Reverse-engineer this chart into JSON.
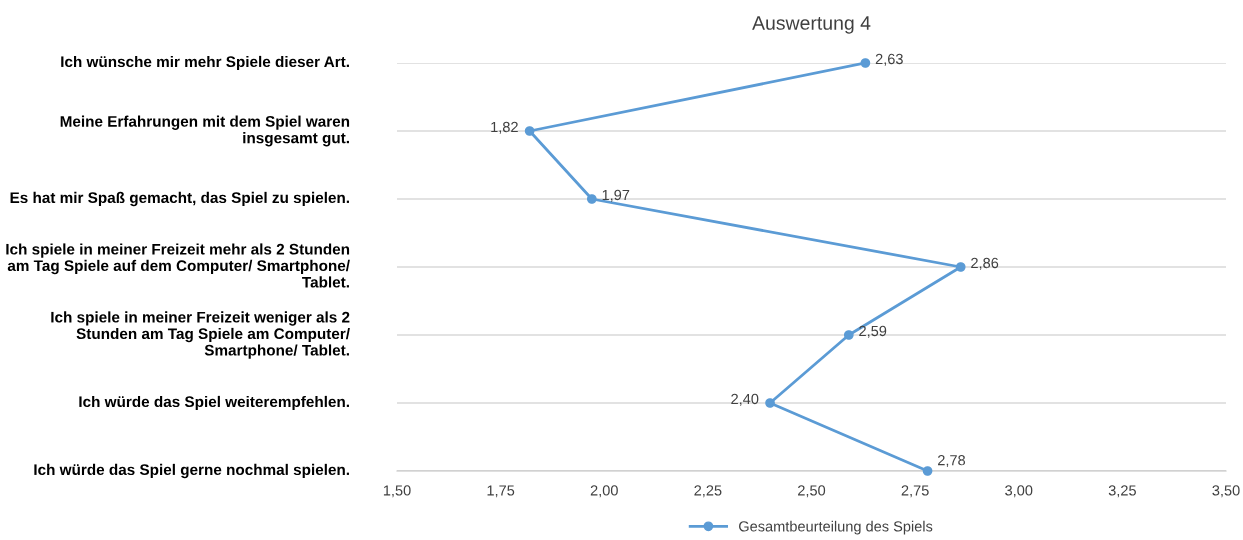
{
  "chart_data": {
    "type": "line",
    "orientation": "horizontal",
    "title": "Auswertung 4",
    "categories": [
      "Ich wünsche mir mehr Spiele dieser Art.",
      "Meine Erfahrungen mit dem Spiel waren insgesamt gut.",
      "Es hat mir Spaß gemacht, das Spiel zu spielen.",
      "Ich spiele in meiner Freizeit mehr als 2 Stunden am Tag Spiele auf dem Computer/ Smartphone/ Tablet.",
      "Ich spiele in meiner Freizeit weniger als 2 Stunden am Tag Spiele am Computer/ Smartphone/ Tablet.",
      "Ich würde das Spiel weiterempfehlen.",
      "Ich würde das Spiel gerne nochmal spielen."
    ],
    "series": [
      {
        "name": "Gesamtbeurteilung des Spiels",
        "color": "#5b9bd5",
        "values": [
          2.63,
          1.82,
          1.97,
          2.86,
          2.59,
          2.4,
          2.78
        ],
        "value_labels": [
          "2,63",
          "1,82",
          "1,97",
          "2,86",
          "2,59",
          "2,40",
          "2,78"
        ]
      }
    ],
    "xlim": [
      1.5,
      3.5
    ],
    "xticks": [
      {
        "value": 1.5,
        "label": "1,50"
      },
      {
        "value": 1.75,
        "label": "1,75"
      },
      {
        "value": 2.0,
        "label": "2,00"
      },
      {
        "value": 2.25,
        "label": "2,25"
      },
      {
        "value": 2.5,
        "label": "2,50"
      },
      {
        "value": 2.75,
        "label": "2,75"
      },
      {
        "value": 3.0,
        "label": "3,00"
      },
      {
        "value": 3.25,
        "label": "3,25"
      },
      {
        "value": 3.5,
        "label": "3,50"
      }
    ],
    "grid": "y",
    "legend": "bottom",
    "marker": "circle",
    "line_style": "solid"
  }
}
